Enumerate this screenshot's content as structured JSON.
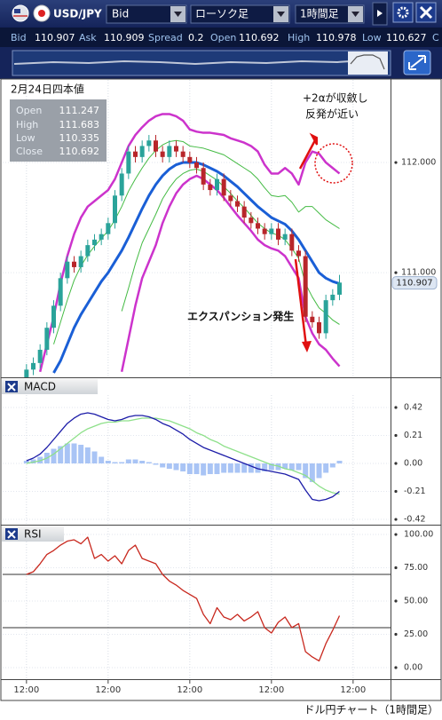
{
  "toolbar": {
    "pair": "USD/JPY",
    "price_type": "Bid",
    "chart_style": "ローソク足",
    "interval": "1時間足"
  },
  "quote": [
    {
      "label": "Bid",
      "value": "110.907"
    },
    {
      "label": "Ask",
      "value": "110.909"
    },
    {
      "label": "Spread",
      "value": "0.2"
    },
    {
      "label": "Open",
      "value": "110.692"
    },
    {
      "label": "High",
      "value": "110.978"
    },
    {
      "label": "Low",
      "value": "110.627"
    },
    {
      "label": "C"
    }
  ],
  "x_axis": {
    "xlim": [
      -3.5,
      53.5
    ],
    "x": [
      0,
      1,
      2,
      3,
      4,
      5,
      6,
      7,
      8,
      9,
      10,
      11,
      12,
      13,
      14,
      15,
      16,
      17,
      18,
      19,
      20,
      21,
      22,
      23,
      24,
      25,
      26,
      27,
      28,
      29,
      30,
      31,
      32,
      33,
      34,
      35,
      36,
      37,
      38,
      39,
      40,
      41,
      42,
      43,
      44,
      45,
      46
    ],
    "xticks": [
      {
        "value": 0,
        "label": "12:00"
      },
      {
        "value": 12,
        "label": "12:00"
      },
      {
        "value": 24,
        "label": "12:00"
      },
      {
        "value": 36,
        "label": "12:00"
      },
      {
        "value": 48,
        "label": "12:00"
      }
    ],
    "grid": true
  },
  "chart_data": [
    {
      "type": "candlestick",
      "ylim": [
        110.05,
        112.75
      ],
      "yticks": [
        {
          "value": 111,
          "label": "111.000"
        },
        {
          "value": 112,
          "label": "112.000"
        }
      ],
      "last_price": 110.907,
      "up_color": "#2aa39a",
      "down_color": "#b8262a",
      "open": [
        110.05,
        110.12,
        110.18,
        110.3,
        110.5,
        110.7,
        110.95,
        111.1,
        111.05,
        111.15,
        111.25,
        111.3,
        111.35,
        111.45,
        111.7,
        111.9,
        112.1,
        112.05,
        112.15,
        112.2,
        112.1,
        112.05,
        112.15,
        112.1,
        112.05,
        112.0,
        111.95,
        111.8,
        111.75,
        111.85,
        111.7,
        111.65,
        111.6,
        111.5,
        111.45,
        111.4,
        111.35,
        111.4,
        111.3,
        111.35,
        111.2,
        111.15,
        110.6,
        110.55,
        110.45,
        110.75,
        110.8
      ],
      "high": [
        110.17,
        110.23,
        110.35,
        110.55,
        110.75,
        111.0,
        111.15,
        111.15,
        111.2,
        111.3,
        111.35,
        111.4,
        111.5,
        111.75,
        111.95,
        112.15,
        112.15,
        112.2,
        112.25,
        112.25,
        112.15,
        112.2,
        112.2,
        112.15,
        112.1,
        112.05,
        112.0,
        111.85,
        111.9,
        111.9,
        111.75,
        111.7,
        111.65,
        111.55,
        111.5,
        111.45,
        111.45,
        111.45,
        111.4,
        111.4,
        111.25,
        111.2,
        110.65,
        110.6,
        110.8,
        110.85,
        110.98
      ],
      "low": [
        110.0,
        110.07,
        110.13,
        110.25,
        110.45,
        110.65,
        110.9,
        111.0,
        111.0,
        111.1,
        111.2,
        111.25,
        111.3,
        111.4,
        111.65,
        111.85,
        112.0,
        112.0,
        112.1,
        112.05,
        112.0,
        112.0,
        112.05,
        112.0,
        111.95,
        111.9,
        111.75,
        111.7,
        111.7,
        111.65,
        111.6,
        111.55,
        111.45,
        111.4,
        111.35,
        111.3,
        111.3,
        111.25,
        111.25,
        111.15,
        111.1,
        110.55,
        110.5,
        110.4,
        110.4,
        110.7,
        110.75
      ],
      "close": [
        110.12,
        110.18,
        110.3,
        110.5,
        110.7,
        110.95,
        111.1,
        111.05,
        111.15,
        111.25,
        111.3,
        111.35,
        111.45,
        111.7,
        111.9,
        112.1,
        112.05,
        112.15,
        112.2,
        112.1,
        112.05,
        112.15,
        112.1,
        112.05,
        112.0,
        111.95,
        111.8,
        111.75,
        111.85,
        111.7,
        111.65,
        111.6,
        111.5,
        111.45,
        111.4,
        111.35,
        111.4,
        111.3,
        111.35,
        111.2,
        111.15,
        110.6,
        110.55,
        110.45,
        110.75,
        110.8,
        110.91
      ],
      "lines": [
        {
          "color": "#cc33cc",
          "width": 2.5,
          "values": [
            null,
            null,
            110.1,
            110.35,
            110.6,
            110.9,
            111.15,
            111.35,
            111.5,
            111.6,
            111.65,
            111.7,
            111.75,
            111.85,
            112.0,
            112.15,
            112.25,
            112.32,
            112.38,
            112.42,
            112.44,
            112.44,
            112.42,
            112.38,
            112.3,
            112.28,
            112.27,
            112.27,
            112.26,
            112.25,
            112.22,
            112.2,
            112.18,
            112.15,
            112.1,
            111.98,
            111.9,
            111.9,
            111.95,
            111.9,
            111.8,
            112.0,
            112.1,
            112.08,
            112.0,
            111.95,
            111.9
          ]
        },
        {
          "color": "#44bb44",
          "width": 1,
          "values": [
            null,
            null,
            null,
            null,
            110.35,
            110.55,
            110.75,
            110.93,
            111.06,
            111.16,
            111.24,
            111.31,
            111.38,
            111.48,
            111.6,
            111.74,
            111.85,
            111.95,
            112.04,
            112.11,
            112.16,
            112.19,
            112.2,
            112.19,
            112.15,
            112.14,
            112.13,
            112.11,
            112.09,
            112.07,
            112.03,
            111.99,
            111.95,
            111.91,
            111.85,
            111.77,
            111.7,
            111.69,
            111.7,
            111.64,
            111.55,
            111.6,
            111.6,
            111.54,
            111.48,
            111.44,
            111.4
          ]
        },
        {
          "color": "#1a5fd6",
          "width": 3,
          "values": [
            null,
            null,
            null,
            null,
            110.09,
            110.2,
            110.35,
            110.5,
            110.62,
            110.72,
            110.82,
            110.92,
            111.0,
            111.1,
            111.2,
            111.32,
            111.45,
            111.58,
            111.7,
            111.8,
            111.88,
            111.94,
            111.98,
            112.0,
            112.0,
            112.0,
            111.98,
            111.95,
            111.92,
            111.88,
            111.83,
            111.78,
            111.72,
            111.66,
            111.6,
            111.55,
            111.5,
            111.47,
            111.44,
            111.38,
            111.3,
            111.2,
            111.1,
            111.0,
            110.95,
            110.92,
            110.9
          ]
        },
        {
          "color": "#44bb44",
          "width": 1,
          "values": [
            null,
            null,
            null,
            null,
            null,
            null,
            null,
            null,
            null,
            null,
            null,
            null,
            null,
            null,
            110.65,
            110.86,
            111.08,
            111.27,
            111.4,
            111.53,
            111.67,
            111.77,
            111.85,
            111.9,
            111.93,
            111.94,
            111.92,
            111.88,
            111.84,
            111.78,
            111.72,
            111.65,
            111.59,
            111.52,
            111.45,
            111.4,
            111.36,
            111.34,
            111.3,
            111.22,
            111.13,
            110.9,
            110.78,
            110.68,
            110.63,
            110.57,
            110.53
          ]
        },
        {
          "color": "#cc33cc",
          "width": 2.5,
          "values": [
            null,
            null,
            null,
            null,
            null,
            null,
            null,
            null,
            null,
            null,
            null,
            null,
            null,
            null,
            110.1,
            110.4,
            110.7,
            110.95,
            111.1,
            111.25,
            111.45,
            111.6,
            111.72,
            111.8,
            111.85,
            111.88,
            111.85,
            111.8,
            111.75,
            111.68,
            111.6,
            111.52,
            111.45,
            111.38,
            111.3,
            111.25,
            111.22,
            111.2,
            111.15,
            111.05,
            110.95,
            110.6,
            110.45,
            110.35,
            110.3,
            110.22,
            110.15
          ]
        }
      ],
      "ohlc_box": {
        "title": "2月24日四本値",
        "rows": [
          [
            "Open",
            "111.247"
          ],
          [
            "High",
            "111.683"
          ],
          [
            "Low",
            "110.335"
          ],
          [
            "Close",
            "110.692"
          ]
        ]
      },
      "annotations": [
        "+2αが収斂し",
        "反発が近い",
        "エクスパンション発生"
      ]
    },
    {
      "type": "line",
      "title": "MACD",
      "ylim": [
        -0.453,
        0.513
      ],
      "yticks": [
        0.42,
        0.21,
        {
          "value": 0,
          "label": "0.00"
        },
        -0.21,
        -0.42
      ],
      "bars": {
        "color": "#a9c4f5",
        "values": [
          0.02,
          0.03,
          0.05,
          0.08,
          0.11,
          0.13,
          0.15,
          0.15,
          0.14,
          0.12,
          0.09,
          0.05,
          0.02,
          0.01,
          0.01,
          0.03,
          0.03,
          0.02,
          0.01,
          -0.01,
          -0.03,
          -0.04,
          -0.05,
          -0.06,
          -0.08,
          -0.08,
          -0.09,
          -0.08,
          -0.08,
          -0.07,
          -0.07,
          -0.07,
          -0.07,
          -0.07,
          -0.07,
          -0.06,
          -0.05,
          -0.05,
          -0.04,
          -0.05,
          -0.05,
          -0.11,
          -0.14,
          -0.11,
          -0.07,
          -0.03,
          0.02
        ]
      },
      "series": [
        {
          "color": "#8ee08a",
          "values": [
            0.0,
            0.01,
            0.02,
            0.04,
            0.07,
            0.11,
            0.15,
            0.19,
            0.23,
            0.26,
            0.28,
            0.3,
            0.31,
            0.31,
            0.32,
            0.32,
            0.33,
            0.34,
            0.34,
            0.34,
            0.33,
            0.32,
            0.3,
            0.28,
            0.26,
            0.23,
            0.21,
            0.18,
            0.16,
            0.13,
            0.11,
            0.09,
            0.07,
            0.05,
            0.03,
            0.01,
            -0.01,
            -0.02,
            -0.04,
            -0.05,
            -0.07,
            -0.09,
            -0.13,
            -0.17,
            -0.2,
            -0.22,
            -0.23
          ]
        },
        {
          "color": "#1c1ca8",
          "values": [
            0.02,
            0.04,
            0.07,
            0.12,
            0.18,
            0.24,
            0.3,
            0.34,
            0.37,
            0.38,
            0.37,
            0.35,
            0.33,
            0.32,
            0.33,
            0.35,
            0.36,
            0.36,
            0.35,
            0.33,
            0.3,
            0.28,
            0.25,
            0.22,
            0.18,
            0.15,
            0.12,
            0.1,
            0.08,
            0.06,
            0.04,
            0.02,
            0.0,
            -0.02,
            -0.04,
            -0.05,
            -0.06,
            -0.07,
            -0.08,
            -0.1,
            -0.12,
            -0.2,
            -0.27,
            -0.28,
            -0.27,
            -0.25,
            -0.21
          ]
        }
      ]
    },
    {
      "type": "line",
      "title": "RSI",
      "ylim": [
        -8.7,
        104.7
      ],
      "yticks": [
        {
          "value": 100,
          "label": "100.00"
        },
        {
          "value": 75,
          "label": "75.00"
        },
        {
          "value": 50,
          "label": "50.00"
        },
        {
          "value": 25,
          "label": "25.00"
        },
        {
          "value": 0,
          "label": "0.00"
        }
      ],
      "levels": [
        70,
        30
      ],
      "series": [
        {
          "color": "#c8281e",
          "values": [
            70,
            72,
            78,
            85,
            88,
            92,
            95,
            96,
            93,
            98,
            82,
            85,
            80,
            84,
            78,
            88,
            92,
            82,
            80,
            78,
            70,
            65,
            62,
            58,
            55,
            52,
            40,
            33,
            45,
            38,
            36,
            40,
            35,
            38,
            42,
            30,
            26,
            34,
            38,
            30,
            33,
            12,
            8,
            5,
            18,
            28,
            39
          ]
        }
      ]
    }
  ],
  "caption": "ドル円チャート（1時間足）"
}
